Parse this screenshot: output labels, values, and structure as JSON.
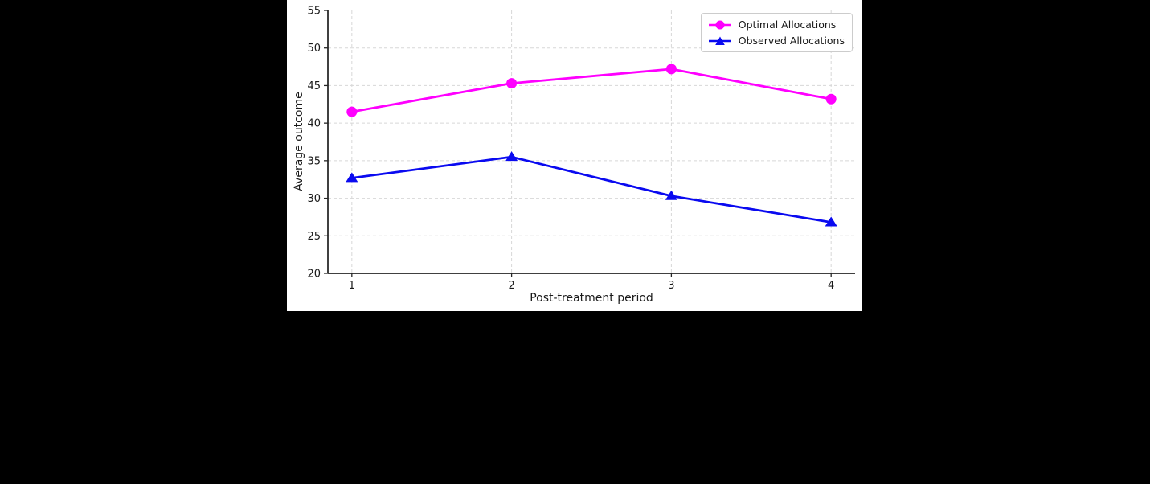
{
  "page": {
    "background": "#000000"
  },
  "figure": {
    "background": "#ffffff"
  },
  "chart_data": {
    "type": "line",
    "x": [
      1,
      2,
      3,
      4
    ],
    "series": [
      {
        "name": "Optimal Allocations",
        "values": [
          41.5,
          45.3,
          47.2,
          43.2
        ],
        "color": "#ff00ff",
        "marker": "circle"
      },
      {
        "name": "Observed Allocations",
        "values": [
          32.7,
          35.5,
          30.3,
          26.8
        ],
        "color": "#0a0af0",
        "marker": "triangle"
      }
    ],
    "title": "",
    "xlabel": "Post-treatment period",
    "ylabel": "Average outcome",
    "xlim": [
      0.85,
      4.15
    ],
    "ylim": [
      20,
      55
    ],
    "xticks": [
      1,
      2,
      3,
      4
    ],
    "yticks": [
      20,
      25,
      30,
      35,
      40,
      45,
      50,
      55
    ],
    "grid": true,
    "grid_style": "dashed",
    "legend_position": "top-right"
  },
  "style": {
    "grid_color": "#d7d7d7",
    "spine_color": "#000000",
    "tick_color": "#262626",
    "text_color": "#1a1a1a",
    "legend_border": "#cccccc"
  }
}
